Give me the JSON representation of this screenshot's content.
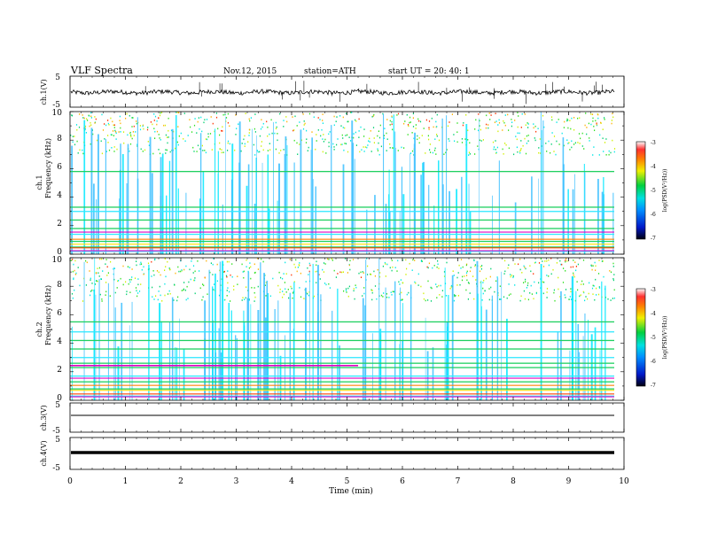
{
  "header": {
    "title": "VLF  Spectra",
    "date": "Nov.12, 2015",
    "station": "station=ATH",
    "start": "start  UT  =   20: 40: 1"
  },
  "chart_data": [
    {
      "type": "line",
      "ylabel": "ch.1(V)",
      "ylim": [
        -5,
        5
      ],
      "yticks": [
        "5",
        "-5"
      ],
      "x_range_min": [
        0,
        10
      ],
      "description_style": "noisy trace around -0.2 V with short spikes",
      "trace_level": -0.2,
      "line_color": "#000000"
    },
    {
      "type": "heatmap",
      "ylabel_channel": "ch.1",
      "ylabel": "Frequency  (kHz)",
      "ylim": [
        0,
        10
      ],
      "yticks": [
        "0",
        "2",
        "4",
        "6",
        "8",
        "10"
      ],
      "colorbar": {
        "label": "log(PSD(V²/Hz))",
        "ticks": [
          "-3",
          "-4",
          "-5",
          "-6",
          "-7"
        ],
        "range": [
          -7,
          -3
        ]
      },
      "bands_khz": [
        0.2,
        0.5,
        0.9,
        1.4,
        1.8,
        2.4,
        3.0,
        3.3,
        5.8
      ]
    },
    {
      "type": "heatmap",
      "ylabel_channel": "ch.2",
      "ylabel": "Frequency  (kHz)",
      "ylim": [
        0,
        10
      ],
      "yticks": [
        "0",
        "2",
        "4",
        "6",
        "8",
        "10"
      ],
      "colorbar": {
        "label": "log(PSD(V²/Hz))",
        "ticks": [
          "-3",
          "-4",
          "-5",
          "-6",
          "-7"
        ],
        "range": [
          -7,
          -3
        ]
      },
      "bands_khz": [
        0.3,
        0.8,
        1.3,
        1.7,
        2.3,
        2.6,
        3.0,
        3.6,
        4.2,
        4.8,
        5.5
      ]
    },
    {
      "type": "line",
      "ylabel": "ch.3(V)",
      "ylim": [
        -5,
        5
      ],
      "yticks": [
        "5",
        "-5"
      ],
      "trace_level": 0,
      "line_color": "#000000"
    },
    {
      "type": "line",
      "ylabel": "ch.4(V)",
      "ylim": [
        -5,
        5
      ],
      "yticks": [
        "5",
        "-5"
      ],
      "trace_level": 0,
      "line_color": "#000000"
    }
  ],
  "xaxis": {
    "label": "Time  (min)",
    "xlim": [
      0,
      10
    ],
    "ticks": [
      "0",
      "1",
      "2",
      "3",
      "4",
      "5",
      "6",
      "7",
      "8",
      "9",
      "10"
    ]
  }
}
